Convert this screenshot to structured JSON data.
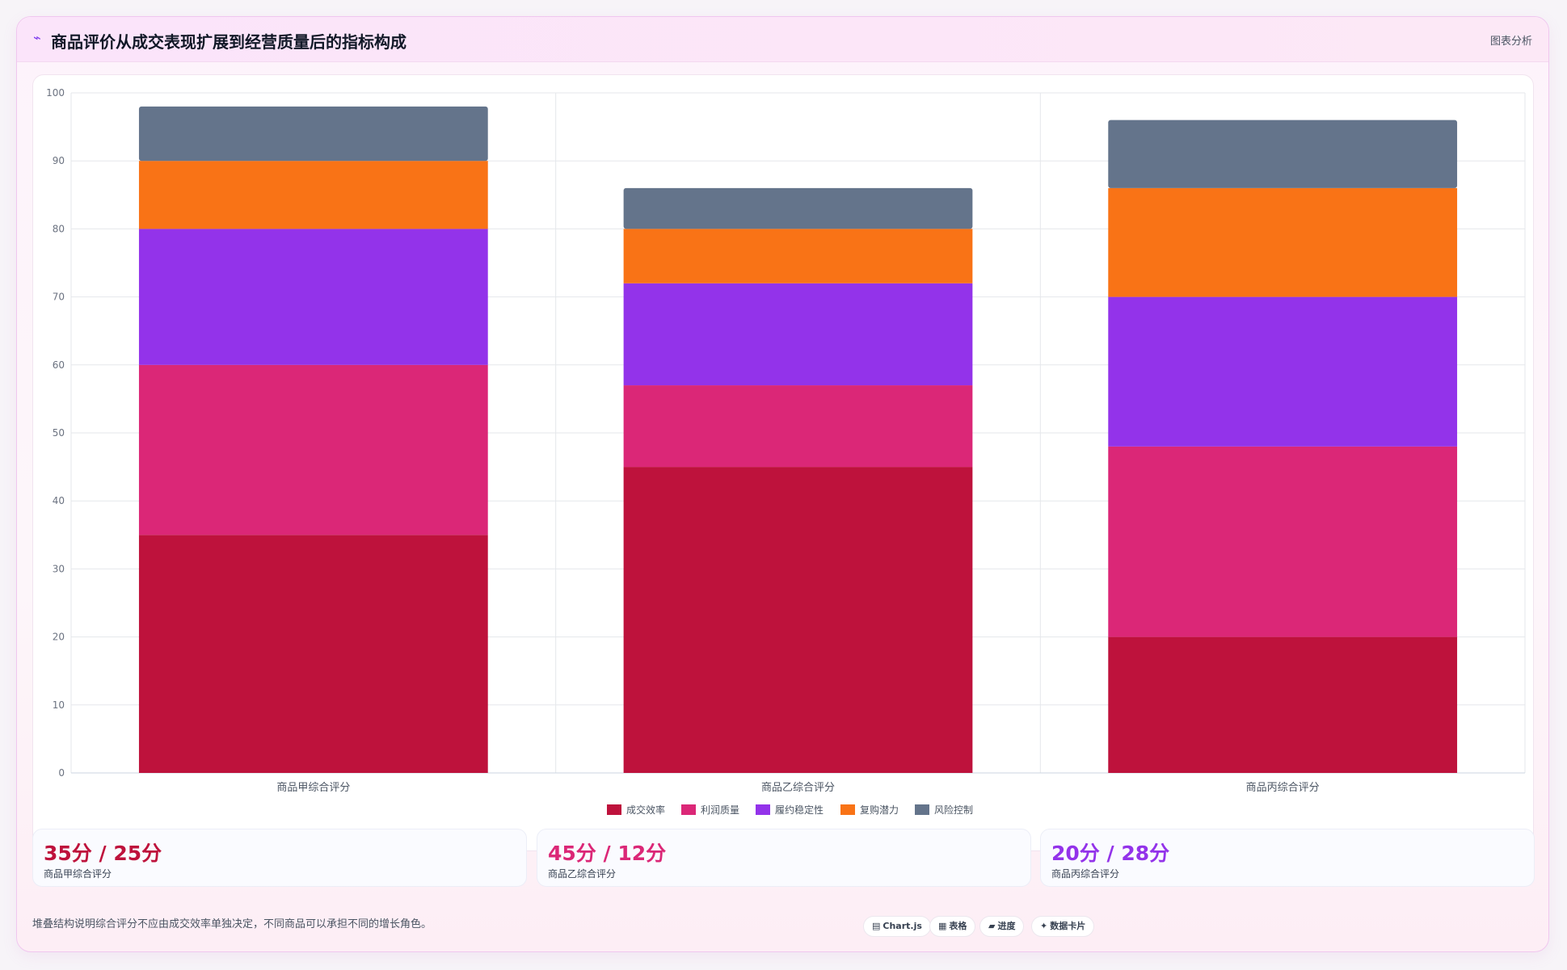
{
  "header": {
    "title": "商品评价从成交表现扩展到经营质量后的指标构成",
    "title_icon": "chart-trend-icon",
    "link": "图表分析"
  },
  "chart_data": {
    "type": "bar",
    "stacked": true,
    "title": "",
    "xlabel": "",
    "ylabel": "",
    "categories": [
      "商品甲综合评分",
      "商品乙综合评分",
      "商品丙综合评分"
    ],
    "series": [
      {
        "name": "成交效率",
        "color": "#be123c",
        "values": [
          35,
          45,
          20
        ]
      },
      {
        "name": "利润质量",
        "color": "#db2777",
        "values": [
          25,
          12,
          28
        ]
      },
      {
        "name": "履约稳定性",
        "color": "#9333ea",
        "values": [
          20,
          15,
          22
        ]
      },
      {
        "name": "复购潜力",
        "color": "#f97316",
        "values": [
          10,
          8,
          16
        ]
      },
      {
        "name": "风险控制",
        "color": "#64748b",
        "values": [
          8,
          6,
          10
        ]
      }
    ],
    "ylim": [
      0,
      100
    ],
    "yticks": [
      0,
      10,
      20,
      30,
      40,
      50,
      60,
      70,
      80,
      90,
      100
    ],
    "grid": true,
    "legend_position": "bottom"
  },
  "stats": [
    {
      "value": "35分 / 25分",
      "label": "商品甲综合评分",
      "color": "#be123c"
    },
    {
      "value": "45分 / 12分",
      "label": "商品乙综合评分",
      "color": "#db2777"
    },
    {
      "value": "20分 / 28分",
      "label": "商品丙综合评分",
      "color": "#9333ea"
    }
  ],
  "footer": {
    "note": "堆叠结构说明综合评分不应由成交效率单独决定，不同商品可以承担不同的增长角色。",
    "tags": [
      {
        "icon": "▤",
        "label": "Chart.js"
      },
      {
        "icon": "▦",
        "label": "表格"
      },
      {
        "icon": "▰",
        "label": "进度"
      },
      {
        "icon": "✦",
        "label": "数据卡片"
      }
    ]
  }
}
